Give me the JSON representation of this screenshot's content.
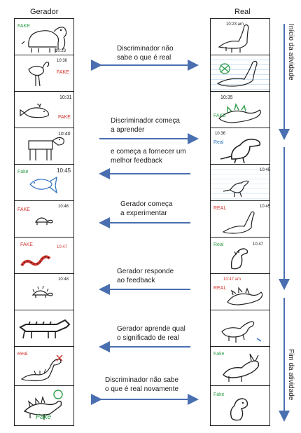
{
  "columns": {
    "left_title": "Gerador",
    "right_title": "Real"
  },
  "side_labels": {
    "start": "Início da atividade",
    "end": "Fim da atividade"
  },
  "annotations": [
    {
      "line1": "Discriminador não",
      "line2": "sabe o que é real"
    },
    {
      "line1": "Discriminador começa",
      "line2": "a aprender"
    },
    {
      "line1": "e começa a fornecer um",
      "line2": "melhor feedback"
    },
    {
      "line1": "Gerador começa",
      "line2": "a experimentar"
    },
    {
      "line1": "Gerador responde",
      "line2": "ao feedback"
    },
    {
      "line1": "Gerador aprende qual",
      "line2": "o significado de real"
    },
    {
      "line1": "Discriminador não sabe",
      "line2": "o que é real novamente"
    }
  ],
  "left_cards": [
    {
      "subject": "elephant-drawing",
      "mark": "FAKE",
      "time": "10:23"
    },
    {
      "subject": "flamingo-drawing",
      "mark": "FAKE",
      "time": "10:36"
    },
    {
      "subject": "whale-drawing",
      "mark": "FAKE",
      "time": "10:31"
    },
    {
      "subject": "table-animal-drawing",
      "mark": "",
      "time": "10:40"
    },
    {
      "subject": "fish-drawing",
      "mark": "Fake",
      "time": "10:45"
    },
    {
      "subject": "turtle-drawing",
      "mark": "FAKE",
      "time": "10:46"
    },
    {
      "subject": "snake-drawing",
      "mark": "FAKE",
      "time": "10:47"
    },
    {
      "subject": "spiky-turtle-drawing",
      "mark": "",
      "time": "10:48"
    },
    {
      "subject": "crocodile-drawing",
      "mark": "",
      "time": ""
    },
    {
      "subject": "dinosaur-drawing",
      "mark": "Real",
      "time": ""
    },
    {
      "subject": "stegosaurus-drawing",
      "mark": "Fake",
      "time": ""
    }
  ],
  "right_cards": [
    {
      "subject": "sauropod-drawing",
      "mark": "",
      "time": "10:23 am"
    },
    {
      "subject": "sauropod-lined-drawing",
      "mark": "",
      "time": ""
    },
    {
      "subject": "stegosaurus-drawing",
      "mark": "FAKE",
      "time": "10:35"
    },
    {
      "subject": "t-rex-drawing",
      "mark": "Real",
      "time": "10:36"
    },
    {
      "subject": "small-raptor-drawing",
      "mark": "",
      "time": "10:45"
    },
    {
      "subject": "long-neck-drawing",
      "mark": "REAL",
      "time": "10:45"
    },
    {
      "subject": "t-rex-small-drawing",
      "mark": "Real",
      "time": "10:47"
    },
    {
      "subject": "spiky-dinosaur-drawing",
      "mark": "REAL",
      "time": "10:47 am"
    },
    {
      "subject": "brontosaurus-drawing",
      "mark": "",
      "time": ""
    },
    {
      "subject": "triceratops-drawing",
      "mark": "Fake",
      "time": ""
    },
    {
      "subject": "baby-dinosaur-drawing",
      "mark": "Fake",
      "time": ""
    }
  ],
  "colors": {
    "arrow": "#4a6fb0",
    "ink": "#1a1a1a",
    "red_mark": "#d0342c",
    "green_mark": "#2e9e4a",
    "blue_mark": "#2a6fbf"
  }
}
